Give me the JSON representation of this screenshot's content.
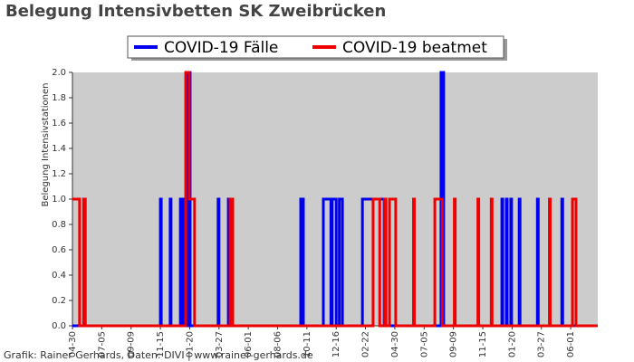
{
  "chart_data": {
    "type": "step-line",
    "title": "Belegung Intensivbetten SK Zweibrücken",
    "y_label": "Belegung Intensivstationen",
    "footer": "Grafik: Rainer Gerhards, Daten: DIVI | www.rainer-gerhards.de",
    "xlim": [
      0,
      1183
    ],
    "xticks": [
      {
        "value": 0,
        "label": "04-30"
      },
      {
        "value": 66,
        "label": "07-05"
      },
      {
        "value": 132,
        "label": "09-09"
      },
      {
        "value": 198,
        "label": "11-15"
      },
      {
        "value": 264,
        "label": "01-20"
      },
      {
        "value": 330,
        "label": "03-27"
      },
      {
        "value": 396,
        "label": "06-01"
      },
      {
        "value": 462,
        "label": "08-06"
      },
      {
        "value": 528,
        "label": "10-11"
      },
      {
        "value": 594,
        "label": "12-16"
      },
      {
        "value": 660,
        "label": "02-22"
      },
      {
        "value": 726,
        "label": "04-30"
      },
      {
        "value": 792,
        "label": "07-05"
      },
      {
        "value": 858,
        "label": "09-09"
      },
      {
        "value": 924,
        "label": "11-15"
      },
      {
        "value": 990,
        "label": "01-20"
      },
      {
        "value": 1056,
        "label": "03-27"
      },
      {
        "value": 1122,
        "label": "06-01"
      }
    ],
    "ylim": [
      0,
      2
    ],
    "yticks": [
      {
        "value": 0,
        "label": "0.0"
      },
      {
        "value": 0.2,
        "label": "0.2"
      },
      {
        "value": 0.4,
        "label": "0.4"
      },
      {
        "value": 0.6,
        "label": "0.6"
      },
      {
        "value": 0.8,
        "label": "0.8"
      },
      {
        "value": 1,
        "label": "1.0"
      },
      {
        "value": 1.2,
        "label": "1.2"
      },
      {
        "value": 1.4,
        "label": "1.4"
      },
      {
        "value": 1.6,
        "label": "1.6"
      },
      {
        "value": 1.8,
        "label": "1.8"
      },
      {
        "value": 2,
        "label": "2.0"
      }
    ],
    "series": [
      {
        "name": "COVID-19 Fälle",
        "color": "#0000ee",
        "x": [
          0,
          198,
          200,
          220,
          222,
          243,
          249,
          259,
          265,
          328,
          330,
          351,
          353,
          514,
          520,
          565,
          582,
          585,
          594,
          601,
          608,
          653,
          702,
          830,
          836,
          967,
          969,
          977,
          979,
          987,
          989,
          1006,
          1008,
          1047,
          1049,
          1102,
          1104,
          1183
        ],
        "values": [
          0,
          1,
          0,
          1,
          0,
          1,
          0,
          2,
          0,
          1,
          0,
          1,
          0,
          1,
          0,
          1,
          0,
          1,
          0,
          1,
          0,
          1,
          0,
          2,
          0,
          1,
          0,
          1,
          0,
          1,
          0,
          1,
          0,
          1,
          0,
          1,
          0,
          0
        ]
      },
      {
        "name": "COVID-19 beatmet",
        "color": "#ee0000",
        "x": [
          0,
          16,
          25,
          29,
          255,
          263,
          275,
          355,
          361,
          677,
          692,
          703,
          706,
          714,
          728,
          768,
          770,
          816,
          833,
          860,
          862,
          913,
          915,
          943,
          945,
          1074,
          1076,
          1126,
          1134,
          1183
        ],
        "values": [
          1,
          0,
          1,
          0,
          2,
          1,
          0,
          1,
          0,
          1,
          0,
          1,
          0,
          1,
          0,
          1,
          0,
          1,
          0,
          1,
          0,
          1,
          0,
          1,
          0,
          1,
          0,
          1,
          0,
          0
        ]
      }
    ]
  }
}
